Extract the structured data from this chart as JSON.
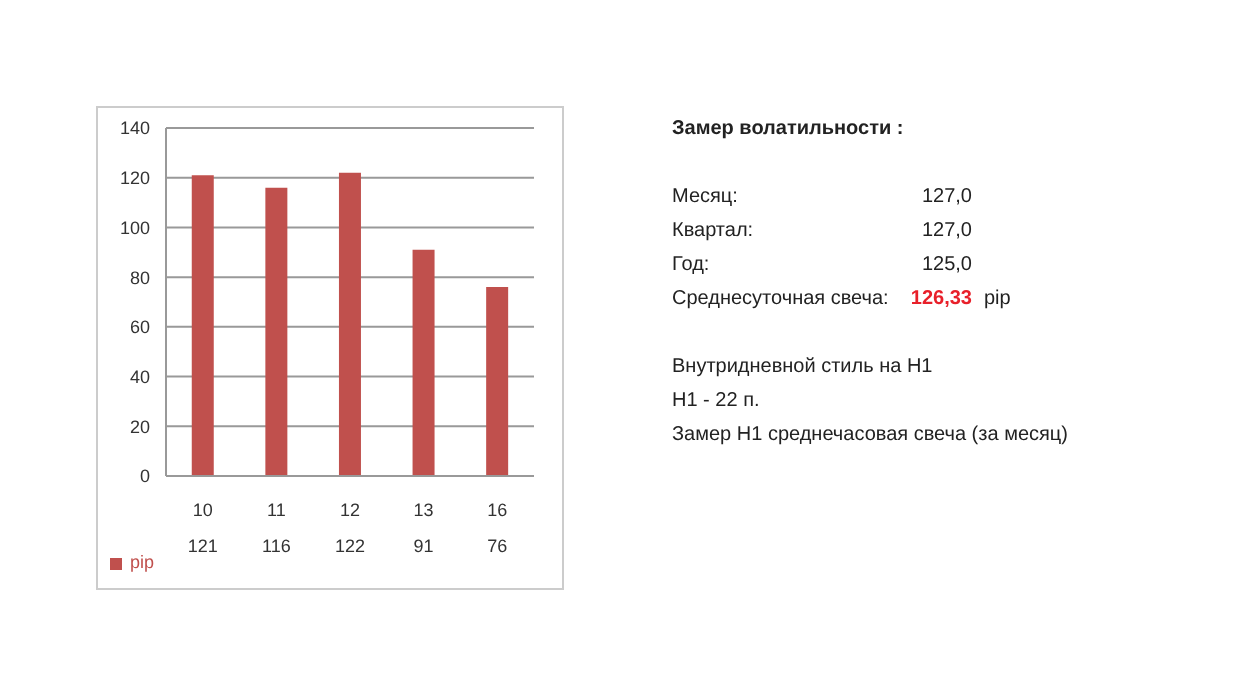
{
  "chart_data": {
    "type": "bar",
    "categories": [
      "10",
      "11",
      "12",
      "13",
      "16"
    ],
    "series": [
      {
        "name": "pip",
        "color": "#c0504d",
        "values": [
          121,
          116,
          122,
          91,
          76
        ]
      }
    ],
    "ylim": [
      0,
      140
    ],
    "yticks": [
      0,
      20,
      40,
      60,
      80,
      100,
      120,
      140
    ],
    "grid": "y",
    "legend": "bottom left",
    "data_labels": true,
    "annotations": [
      "Замер  волатильности  :",
      "Месяц:",
      "127,0",
      "Квартал:",
      "127,0",
      "Год:",
      "125,0",
      "Среднесуточная свеча:",
      "126,33",
      "pip",
      "Внутридневной стиль на H1",
      "H1 - 22 п.",
      "Замер H1 среднечасовая свеча (за месяц)"
    ]
  }
}
